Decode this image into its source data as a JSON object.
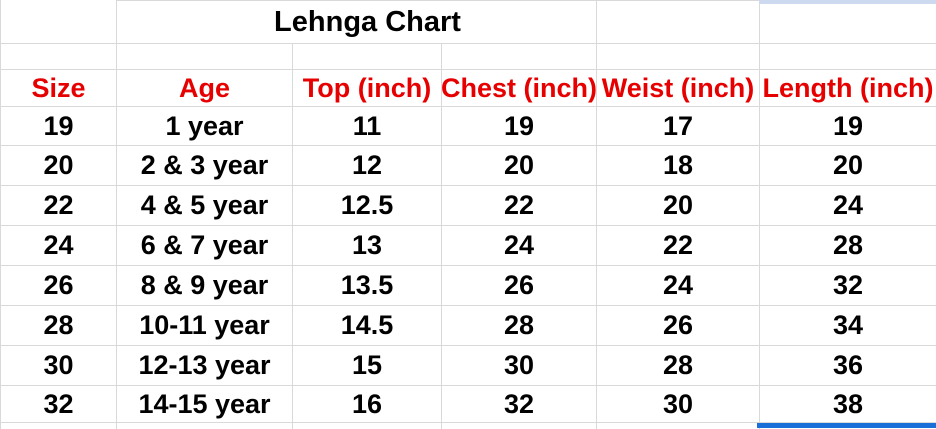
{
  "sheet": {
    "title": "Lehnga Chart",
    "columns": [
      "Size",
      "Age",
      "Top (inch)",
      "Chest (inch)",
      "Weist (inch)",
      "Length (inch)"
    ],
    "rows": [
      [
        "19",
        "1 year",
        "11",
        "19",
        "17",
        "19"
      ],
      [
        "20",
        "2 & 3 year",
        "12",
        "20",
        "18",
        "20"
      ],
      [
        "22",
        "4 & 5 year",
        "12.5",
        "22",
        "20",
        "24"
      ],
      [
        "24",
        "6 & 7 year",
        "13",
        "24",
        "22",
        "28"
      ],
      [
        "26",
        "8 & 9 year",
        "13.5",
        "26",
        "24",
        "32"
      ],
      [
        "28",
        "10-11 year",
        "14.5",
        "28",
        "26",
        "34"
      ],
      [
        "30",
        "12-13 year",
        "15",
        "30",
        "28",
        "36"
      ],
      [
        "32",
        "14-15 year",
        "16",
        "32",
        "30",
        "38"
      ]
    ],
    "colors": {
      "header_text": "#e60000",
      "body_text": "#000000",
      "gridline": "#d9d9d9",
      "selection_border": "#1b6fd8",
      "selection_fill": "#ccd9ee",
      "background": "#ffffff"
    }
  }
}
